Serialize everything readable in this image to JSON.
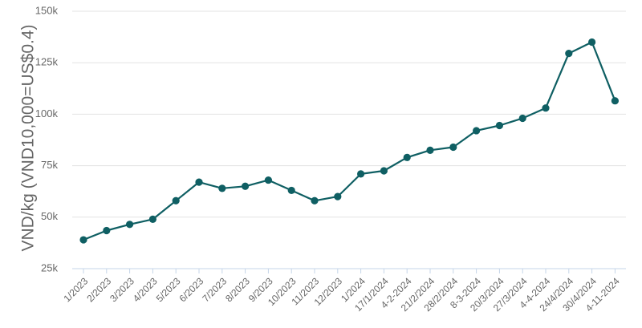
{
  "chart_data": {
    "type": "line",
    "title": "",
    "xlabel": "",
    "ylabel": "VND/kg (VND10,000=US$0.4)",
    "ylim": [
      25000,
      150000
    ],
    "yticks": [
      25000,
      50000,
      75000,
      100000,
      125000,
      150000
    ],
    "ytick_labels": [
      "25k",
      "50k",
      "75k",
      "100k",
      "125k",
      "150k"
    ],
    "grid": true,
    "legend": "none",
    "categories": [
      "1/2023",
      "2/2023",
      "3/2023",
      "4/2023",
      "5/2023",
      "6/2023",
      "7/2023",
      "8/2023",
      "9/2023",
      "10/2023",
      "11/2023",
      "12/2023",
      "1/2024",
      "17/1/2024",
      "4-2-2024",
      "21/2/2024",
      "28/2/2024",
      "8-3-2024",
      "20/3/2024",
      "27/3/2024",
      "4-4-2024",
      "24/4/2024",
      "30/4/2024",
      "4-11-2024"
    ],
    "series": [
      {
        "name": "",
        "values": [
          39000,
          43500,
          46500,
          49000,
          58000,
          67000,
          64000,
          65000,
          68000,
          63000,
          58000,
          60000,
          71000,
          72500,
          79000,
          82500,
          84000,
          92000,
          94500,
          98000,
          103000,
          129500,
          135000,
          106500
        ]
      }
    ],
    "colors": {
      "line": "#0f5f63",
      "grid": "#e3e3e3",
      "axis": "#c5d5e8",
      "text": "#666666"
    }
  }
}
